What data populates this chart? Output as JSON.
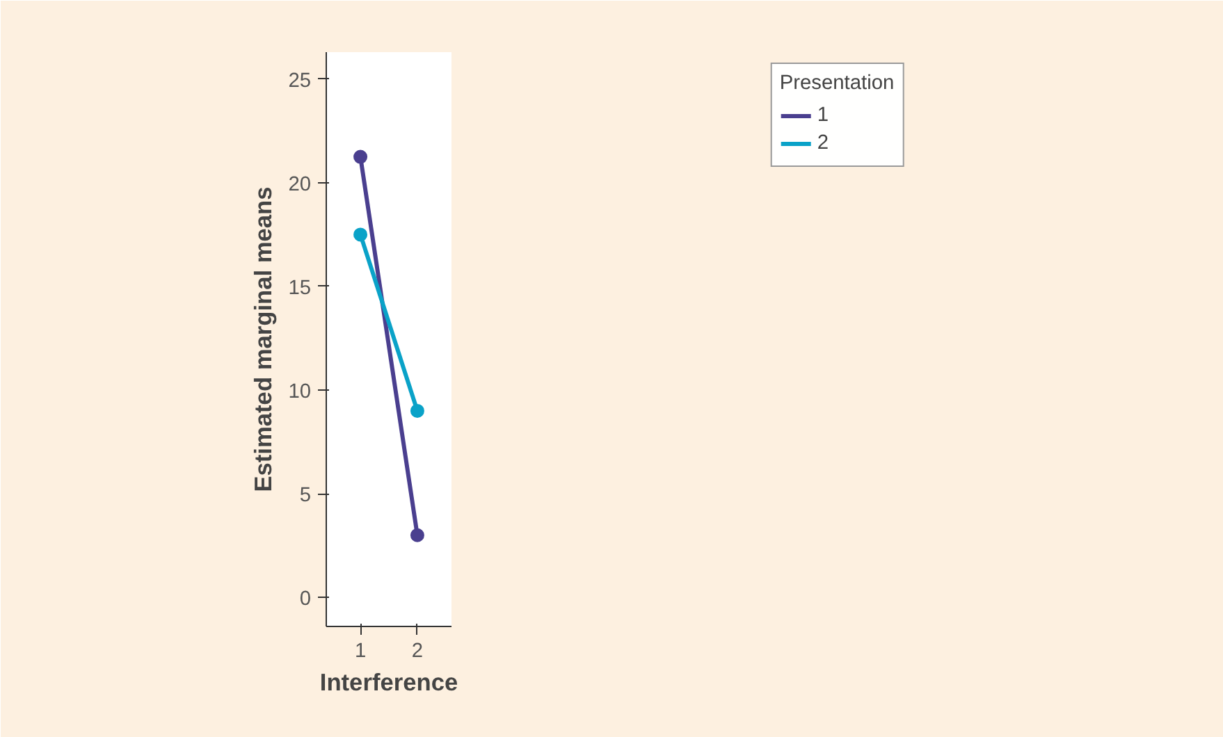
{
  "chart_data": {
    "type": "line",
    "xlabel": "Interference",
    "ylabel": "Estimated marginal means",
    "legend_title": "Presentation",
    "x": [
      1,
      2
    ],
    "xlim": [
      0.4,
      2.6
    ],
    "xticks": [
      1,
      2
    ],
    "ylim": [
      -1.4,
      26.3
    ],
    "yticks": [
      0,
      5,
      10,
      15,
      20,
      25
    ],
    "series": [
      {
        "name": "1",
        "color": "#4a3f8f",
        "values": [
          21.25,
          3.0
        ]
      },
      {
        "name": "2",
        "color": "#0aa2c8",
        "values": [
          17.5,
          9.0
        ]
      }
    ],
    "marker": "circle",
    "line_style": "solid",
    "grid": false,
    "legend": "right"
  }
}
